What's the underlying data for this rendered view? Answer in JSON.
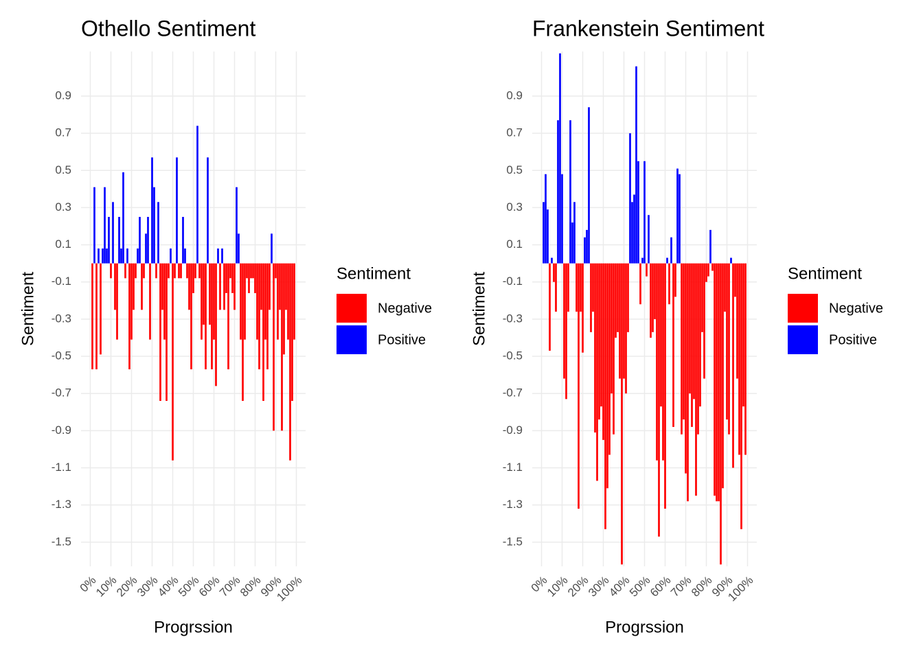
{
  "chart_data": [
    {
      "type": "bar",
      "title": "Othello Sentiment",
      "xlabel": "Progrssion",
      "ylabel": "Sentiment",
      "x": [
        1,
        2,
        3,
        4,
        5,
        6,
        7,
        8,
        9,
        10,
        11,
        12,
        13,
        14,
        15,
        16,
        17,
        18,
        19,
        20,
        21,
        22,
        23,
        24,
        25,
        26,
        27,
        28,
        29,
        30,
        31,
        32,
        33,
        34,
        35,
        36,
        37,
        38,
        39,
        40,
        41,
        42,
        43,
        44,
        45,
        46,
        47,
        48,
        49,
        50,
        51,
        52,
        53,
        54,
        55,
        56,
        57,
        58,
        59,
        60,
        61,
        62,
        63,
        64,
        65,
        66,
        67,
        68,
        69,
        70,
        71,
        72,
        73,
        74,
        75,
        76,
        77,
        78,
        79,
        80,
        81,
        82,
        83,
        84,
        85,
        86,
        87,
        88,
        89,
        90,
        91,
        92,
        93,
        94,
        95,
        96,
        97,
        98,
        99
      ],
      "values": [
        -0.57,
        0.41,
        -0.57,
        0.08,
        -0.49,
        0.08,
        0.41,
        0.08,
        0.25,
        -0.08,
        0.33,
        -0.25,
        -0.41,
        0.25,
        0.08,
        0.49,
        -0.08,
        0.08,
        -0.57,
        -0.41,
        -0.25,
        -0.08,
        0.08,
        0.25,
        -0.25,
        -0.08,
        0.16,
        0.25,
        -0.41,
        0.57,
        0.41,
        -0.08,
        0.33,
        -0.74,
        -0.25,
        -0.41,
        -0.74,
        -0.08,
        0.08,
        -1.06,
        -0.08,
        0.57,
        -0.08,
        -0.08,
        0.25,
        0.08,
        -0.08,
        -0.25,
        -0.57,
        -0.16,
        -0.08,
        0.74,
        -0.08,
        -0.41,
        -0.33,
        -0.57,
        0.57,
        -0.33,
        -0.57,
        -0.41,
        -0.66,
        0.08,
        -0.25,
        0.08,
        -0.25,
        -0.16,
        -0.57,
        -0.08,
        -0.16,
        -0.25,
        0.41,
        0.16,
        -0.41,
        -0.74,
        -0.41,
        -0.08,
        -0.16,
        -0.08,
        -0.08,
        -0.16,
        -0.41,
        -0.57,
        -0.25,
        -0.74,
        -0.41,
        -0.57,
        -0.25,
        0.16,
        -0.9,
        -0.08,
        -0.41,
        -0.25,
        -0.9,
        -0.49,
        -0.25,
        -0.41,
        -1.06,
        -0.74,
        -0.41
      ],
      "xlim": [
        -4.5,
        104.5
      ],
      "ylim": [
        -1.63,
        1.14
      ],
      "xticks": [
        {
          "value": 0,
          "label": "0%"
        },
        {
          "value": 10,
          "label": "10%"
        },
        {
          "value": 20,
          "label": "20%"
        },
        {
          "value": 30,
          "label": "30%"
        },
        {
          "value": 40,
          "label": "40%"
        },
        {
          "value": 50,
          "label": "50%"
        },
        {
          "value": 60,
          "label": "60%"
        },
        {
          "value": 70,
          "label": "70%"
        },
        {
          "value": 80,
          "label": "80%"
        },
        {
          "value": 90,
          "label": "90%"
        },
        {
          "value": 100,
          "label": "100%"
        }
      ],
      "yticks": [
        0.9,
        0.7,
        0.5,
        0.3,
        0.1,
        -0.1,
        -0.3,
        -0.5,
        -0.7,
        -0.9,
        -1.1,
        -1.3,
        -1.5
      ],
      "grid": true,
      "legend": {
        "title": "Sentiment",
        "position": "right",
        "entries": [
          {
            "name": "Negative",
            "color": "#ff0000"
          },
          {
            "name": "Positive",
            "color": "#0000ff"
          }
        ]
      }
    },
    {
      "type": "bar",
      "title": "Frankenstein Sentiment",
      "xlabel": "Progrssion",
      "ylabel": "Sentiment",
      "x": [
        1,
        2,
        3,
        4,
        5,
        6,
        7,
        8,
        9,
        10,
        11,
        12,
        13,
        14,
        15,
        16,
        17,
        18,
        19,
        20,
        21,
        22,
        23,
        24,
        25,
        26,
        27,
        28,
        29,
        30,
        31,
        32,
        33,
        34,
        35,
        36,
        37,
        38,
        39,
        40,
        41,
        42,
        43,
        44,
        45,
        46,
        47,
        48,
        49,
        50,
        51,
        52,
        53,
        54,
        55,
        56,
        57,
        58,
        59,
        60,
        61,
        62,
        63,
        64,
        65,
        66,
        67,
        68,
        69,
        70,
        71,
        72,
        73,
        74,
        75,
        76,
        77,
        78,
        79,
        80,
        81,
        82,
        83,
        84,
        85,
        86,
        87,
        88,
        89,
        90,
        91,
        92,
        93,
        94,
        95,
        96,
        97,
        98,
        99
      ],
      "values": [
        0.33,
        0.48,
        0.29,
        -0.47,
        0.03,
        -0.1,
        -0.26,
        0.77,
        1.13,
        0.48,
        -0.62,
        -0.73,
        -0.26,
        0.77,
        0.22,
        0.33,
        -0.26,
        -1.32,
        -0.26,
        -0.48,
        0.14,
        0.18,
        0.84,
        -0.37,
        -0.26,
        -0.91,
        -1.17,
        -0.84,
        -0.77,
        -0.95,
        -1.43,
        -1.21,
        -1.03,
        -0.7,
        -0.92,
        -0.4,
        -0.37,
        -0.62,
        -1.62,
        -0.62,
        -0.7,
        -0.37,
        0.7,
        0.33,
        0.37,
        1.06,
        0.55,
        -0.22,
        0.03,
        0.55,
        -0.07,
        0.26,
        -0.4,
        -0.37,
        -0.3,
        -1.06,
        -1.47,
        -0.77,
        -1.06,
        -1.32,
        0.03,
        -0.22,
        0.14,
        -0.88,
        -0.18,
        0.51,
        0.48,
        -0.92,
        -0.84,
        -1.13,
        -1.28,
        -0.7,
        -0.88,
        -0.73,
        -1.25,
        -0.92,
        -0.77,
        -0.37,
        -0.62,
        -0.1,
        -0.07,
        0.18,
        -0.04,
        -1.25,
        -1.28,
        -1.28,
        -1.62,
        -1.21,
        -0.26,
        -0.84,
        -0.92,
        0.03,
        -1.1,
        -0.18,
        -0.62,
        -1.03,
        -1.43,
        -0.77,
        -1.03
      ],
      "xlim": [
        -4.5,
        104.5
      ],
      "ylim": [
        -1.63,
        1.14
      ],
      "xticks": [
        {
          "value": 0,
          "label": "0%"
        },
        {
          "value": 10,
          "label": "10%"
        },
        {
          "value": 20,
          "label": "20%"
        },
        {
          "value": 30,
          "label": "30%"
        },
        {
          "value": 40,
          "label": "40%"
        },
        {
          "value": 50,
          "label": "50%"
        },
        {
          "value": 60,
          "label": "60%"
        },
        {
          "value": 70,
          "label": "70%"
        },
        {
          "value": 80,
          "label": "80%"
        },
        {
          "value": 90,
          "label": "90%"
        },
        {
          "value": 100,
          "label": "100%"
        }
      ],
      "yticks": [
        0.9,
        0.7,
        0.5,
        0.3,
        0.1,
        -0.1,
        -0.3,
        -0.5,
        -0.7,
        -0.9,
        -1.1,
        -1.3,
        -1.5
      ],
      "grid": true,
      "legend": {
        "title": "Sentiment",
        "position": "right",
        "entries": [
          {
            "name": "Negative",
            "color": "#ff0000"
          },
          {
            "name": "Positive",
            "color": "#0000ff"
          }
        ]
      }
    }
  ]
}
